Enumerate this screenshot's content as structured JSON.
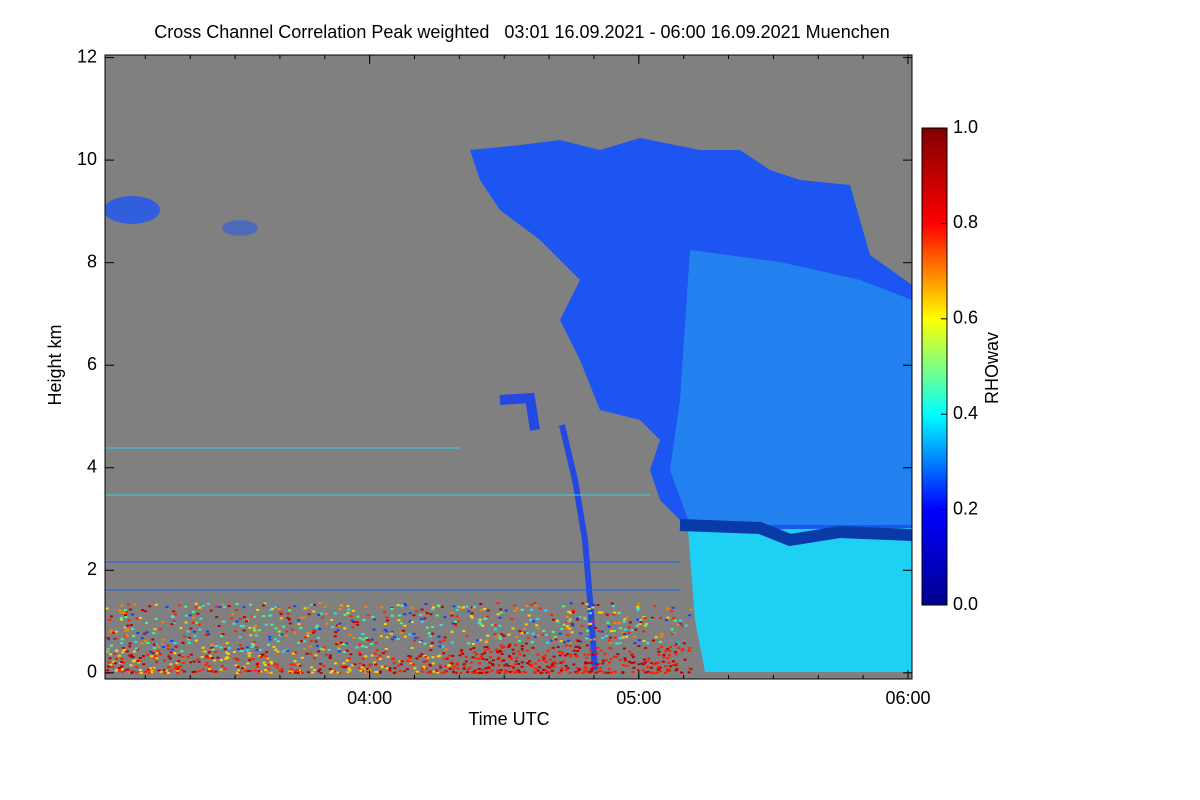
{
  "chart_data": {
    "type": "heatmap",
    "title": "Cross Channel Correlation Peak weighted   03:01 16.09.2021 - 06:00 16.09.2021 Muenchen",
    "x_label": "Time UTC",
    "y_label": "Height km",
    "xlim": [
      3.0167,
      6.015
    ],
    "xticks": [
      {
        "value": 4,
        "label": "04:00"
      },
      {
        "value": 5,
        "label": "05:00"
      },
      {
        "value": 6,
        "label": "06:00"
      }
    ],
    "ylim": [
      -0.12,
      12.05
    ],
    "yticks": [
      0,
      2,
      4,
      6,
      8,
      10,
      12
    ],
    "colorbar": {
      "label": "RHOwav",
      "lim": [
        0,
        1
      ],
      "ticks": [
        {
          "value": 0,
          "label": "0.0"
        },
        {
          "value": 0.2,
          "label": "0.2"
        },
        {
          "value": 0.4,
          "label": "0.4"
        },
        {
          "value": 0.6,
          "label": "0.6"
        },
        {
          "value": 0.8,
          "label": "0.8"
        },
        {
          "value": 1,
          "label": "1.0"
        }
      ],
      "colors": [
        "#00008f",
        "#0000ff",
        "#00ffff",
        "#ffff00",
        "#ff0000",
        "#800000"
      ]
    }
  }
}
